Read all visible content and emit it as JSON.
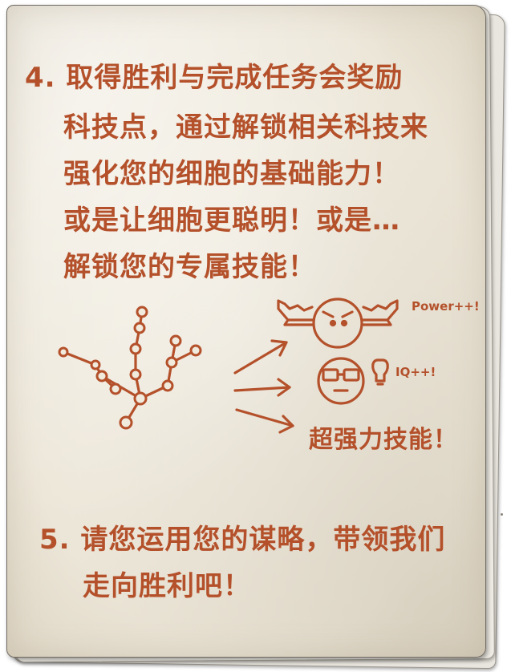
{
  "section4": {
    "line1": "4. 取得胜利与完成任务会奖励",
    "line2": "科技点，通过解锁相关科技来",
    "line3": "强化您的细胞的基础能力！",
    "line4": "或是让细胞更聪明！或是…",
    "line5": "解锁您的专属技能！"
  },
  "diagram": {
    "power_label": "Power++!",
    "iq_label": "IQ++!",
    "skill_label": "超强力技能！"
  },
  "section5": {
    "line1": "5. 请您运用您的谋略，带领我们",
    "line2": "走向胜利吧！"
  },
  "colors": {
    "ink": "#b4512b",
    "paper": "#efe9dc"
  }
}
